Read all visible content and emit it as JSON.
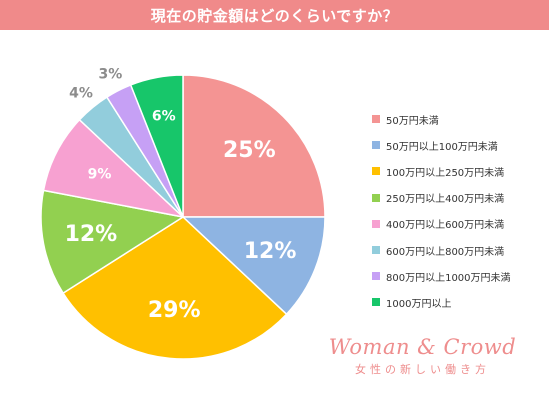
{
  "header": {
    "title": "現在の貯金額はどのくらいですか？"
  },
  "chart_data": {
    "type": "pie",
    "categories": [
      "50万円未満",
      "50万円以上100万円未満",
      "100万円以上250万円未満",
      "250万円以上400万円未満",
      "400万円以上600万円未満",
      "600万円以上800万円未満",
      "800万円以上1000万円未満",
      "1000万円以上"
    ],
    "values": [
      25,
      12,
      29,
      12,
      9,
      4,
      3,
      6
    ],
    "data_labels": [
      "25%",
      "12%",
      "29%",
      "12%",
      "9%",
      "4%",
      "3%",
      "6%"
    ],
    "colors": [
      "#f49493",
      "#8eb4e2",
      "#ffc000",
      "#92d050",
      "#f7a1d1",
      "#92cddc",
      "#c6a0f5",
      "#17c66a"
    ],
    "legend_position": "right",
    "start_angle": "12 o'clock, clockwise"
  },
  "branding": {
    "logo": "Woman & Crowd",
    "tagline": "女性の新しい働き方"
  }
}
